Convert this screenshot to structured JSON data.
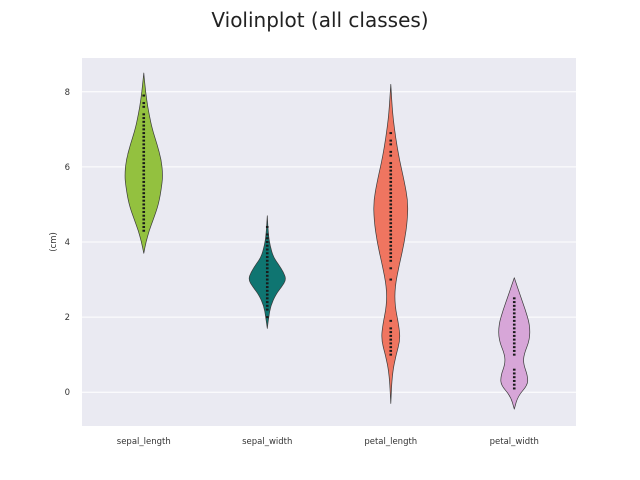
{
  "chart_data": {
    "type": "violin",
    "title": "Violinplot (all classes)",
    "xlabel": "",
    "ylabel": "(cm)",
    "ylim": [
      -0.9,
      8.9
    ],
    "yticks": [
      0,
      2,
      4,
      6,
      8
    ],
    "grid": true,
    "categories": [
      "sepal_length",
      "sepal_width",
      "petal_length",
      "petal_width"
    ],
    "colors": [
      "#93c13f",
      "#0f7571",
      "#ef7560",
      "#d7a6d8"
    ],
    "series": [
      {
        "category": "sepal_length",
        "min": 4.3,
        "max": 7.9,
        "points": [
          4.3,
          4.4,
          4.5,
          4.6,
          4.7,
          4.8,
          4.9,
          5.0,
          5.1,
          5.2,
          5.3,
          5.4,
          5.5,
          5.6,
          5.7,
          5.8,
          5.9,
          6.0,
          6.1,
          6.2,
          6.3,
          6.4,
          6.5,
          6.6,
          6.7,
          6.8,
          6.9,
          7.0,
          7.1,
          7.2,
          7.3,
          7.4,
          7.6,
          7.7,
          7.9
        ]
      },
      {
        "category": "sepal_width",
        "min": 2.0,
        "max": 4.4,
        "points": [
          2.0,
          2.2,
          2.3,
          2.4,
          2.5,
          2.6,
          2.7,
          2.8,
          2.9,
          3.0,
          3.1,
          3.2,
          3.3,
          3.4,
          3.5,
          3.6,
          3.7,
          3.8,
          3.9,
          4.0,
          4.1,
          4.2,
          4.4
        ]
      },
      {
        "category": "petal_length",
        "min": 1.0,
        "max": 6.9,
        "points": [
          1.0,
          1.1,
          1.2,
          1.3,
          1.4,
          1.5,
          1.6,
          1.7,
          1.9,
          3.0,
          3.3,
          3.5,
          3.6,
          3.7,
          3.8,
          3.9,
          4.0,
          4.1,
          4.2,
          4.3,
          4.4,
          4.5,
          4.6,
          4.7,
          4.8,
          4.9,
          5.0,
          5.1,
          5.2,
          5.3,
          5.4,
          5.5,
          5.6,
          5.7,
          5.8,
          5.9,
          6.0,
          6.1,
          6.3,
          6.4,
          6.6,
          6.7,
          6.9
        ]
      },
      {
        "category": "petal_width",
        "min": 0.1,
        "max": 2.5,
        "points": [
          0.1,
          0.2,
          0.3,
          0.4,
          0.5,
          0.6,
          1.0,
          1.1,
          1.2,
          1.3,
          1.4,
          1.5,
          1.6,
          1.7,
          1.8,
          1.9,
          2.0,
          2.1,
          2.2,
          2.3,
          2.4,
          2.5
        ]
      }
    ],
    "violin_profiles": [
      [
        [
          3.7,
          0.0
        ],
        [
          4.0,
          0.12
        ],
        [
          4.3,
          0.28
        ],
        [
          4.6,
          0.5
        ],
        [
          5.0,
          0.78
        ],
        [
          5.5,
          0.95
        ],
        [
          5.8,
          1.0
        ],
        [
          6.2,
          0.92
        ],
        [
          6.6,
          0.7
        ],
        [
          7.0,
          0.45
        ],
        [
          7.4,
          0.28
        ],
        [
          7.8,
          0.15
        ],
        [
          8.2,
          0.06
        ],
        [
          8.5,
          0.0
        ]
      ],
      [
        [
          1.7,
          0.0
        ],
        [
          2.0,
          0.08
        ],
        [
          2.3,
          0.18
        ],
        [
          2.6,
          0.45
        ],
        [
          2.8,
          0.75
        ],
        [
          3.0,
          1.0
        ],
        [
          3.2,
          0.85
        ],
        [
          3.4,
          0.6
        ],
        [
          3.6,
          0.32
        ],
        [
          3.9,
          0.15
        ],
        [
          4.2,
          0.06
        ],
        [
          4.7,
          0.0
        ]
      ],
      [
        [
          -0.3,
          0.0
        ],
        [
          0.5,
          0.08
        ],
        [
          1.0,
          0.28
        ],
        [
          1.4,
          0.5
        ],
        [
          1.8,
          0.42
        ],
        [
          2.3,
          0.22
        ],
        [
          2.8,
          0.22
        ],
        [
          3.4,
          0.45
        ],
        [
          4.0,
          0.72
        ],
        [
          4.6,
          0.88
        ],
        [
          5.1,
          0.9
        ],
        [
          5.6,
          0.72
        ],
        [
          6.2,
          0.45
        ],
        [
          6.8,
          0.25
        ],
        [
          7.4,
          0.1
        ],
        [
          8.2,
          0.0
        ]
      ],
      [
        [
          -0.45,
          0.0
        ],
        [
          -0.1,
          0.2
        ],
        [
          0.2,
          0.72
        ],
        [
          0.45,
          0.7
        ],
        [
          0.75,
          0.48
        ],
        [
          1.0,
          0.5
        ],
        [
          1.4,
          0.82
        ],
        [
          1.8,
          0.82
        ],
        [
          2.2,
          0.58
        ],
        [
          2.6,
          0.3
        ],
        [
          3.05,
          0.0
        ]
      ]
    ]
  }
}
